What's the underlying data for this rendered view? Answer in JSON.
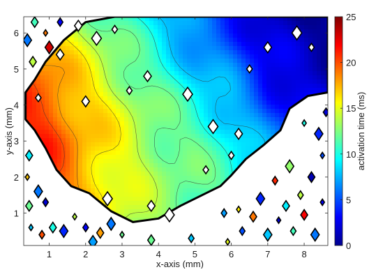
{
  "chart_data": {
    "type": "heatmap",
    "title": "",
    "xlabel": "x-axis (mm)",
    "ylabel": "y-axis (mm)",
    "colorbar_label": "activation time (ms)",
    "xlim": [
      0.3,
      8.65
    ],
    "ylim": [
      0.1,
      6.45
    ],
    "clim": [
      0,
      25
    ],
    "x_ticks": [
      1,
      2,
      3,
      4,
      5,
      6,
      7,
      8
    ],
    "y_ticks": [
      1,
      2,
      3,
      4,
      5,
      6
    ],
    "colorbar_ticks": [
      0,
      5,
      10,
      15,
      20,
      25
    ],
    "colormap": "jet",
    "colormap_stops": [
      "#00008f",
      "#0000ff",
      "#0080ff",
      "#00ffff",
      "#80ff80",
      "#ffff00",
      "#ff8000",
      "#ff0000",
      "#800000"
    ],
    "contour_levels": [
      8,
      10,
      12,
      14,
      16,
      18,
      20
    ],
    "grid": false,
    "description_of_field": "activation time increases from upper-right (~0 ms) to left (~20 ms)",
    "region_polygon": [
      [
        0.35,
        4.35
      ],
      [
        0.6,
        4.7
      ],
      [
        0.9,
        5.2
      ],
      [
        1.4,
        5.8
      ],
      [
        2.0,
        6.3
      ],
      [
        2.8,
        6.45
      ],
      [
        6.5,
        6.45
      ],
      [
        8.65,
        6.45
      ],
      [
        8.65,
        4.35
      ],
      [
        8.1,
        4.25
      ],
      [
        7.6,
        3.9
      ],
      [
        7.35,
        3.3
      ],
      [
        6.9,
        2.9
      ],
      [
        6.4,
        2.5
      ],
      [
        6.0,
        2.05
      ],
      [
        5.7,
        1.75
      ],
      [
        5.2,
        1.5
      ],
      [
        4.6,
        1.2
      ],
      [
        4.0,
        0.85
      ],
      [
        3.3,
        0.75
      ],
      [
        2.7,
        1.05
      ],
      [
        2.1,
        1.55
      ],
      [
        1.6,
        1.75
      ],
      [
        1.2,
        2.2
      ],
      [
        0.9,
        2.8
      ],
      [
        0.6,
        3.3
      ],
      [
        0.35,
        3.6
      ]
    ],
    "values_grid": {
      "x": [
        0.3,
        1.0,
        2.0,
        3.0,
        4.0,
        5.0,
        6.0,
        7.0,
        8.0,
        8.65
      ],
      "y": [
        0.1,
        1.0,
        2.0,
        3.0,
        4.0,
        5.0,
        6.0,
        6.45
      ],
      "z": [
        [
          19,
          18,
          16.5,
          14.5,
          12.5,
          11.5,
          10.5,
          9,
          7,
          6
        ],
        [
          20,
          19,
          17,
          15,
          13,
          12,
          11,
          9,
          7,
          6
        ],
        [
          20.5,
          20,
          17.5,
          15,
          13,
          12,
          10.5,
          8,
          6,
          5
        ],
        [
          21,
          20.5,
          17.5,
          15,
          13,
          11.5,
          9.5,
          6.5,
          4.5,
          4
        ],
        [
          20.5,
          20,
          17,
          14.5,
          12,
          10,
          8,
          4.5,
          3,
          2.5
        ],
        [
          19.5,
          18.5,
          15.5,
          13,
          10.5,
          8,
          6,
          3,
          1.5,
          1
        ],
        [
          18.5,
          16.5,
          14,
          11.5,
          9,
          6.5,
          4.5,
          2,
          0.8,
          0.5
        ],
        [
          18,
          15.5,
          13,
          10.5,
          8.5,
          6,
          4,
          1.5,
          0.5,
          0.3
        ]
      ]
    },
    "scatter_blobs": {
      "description": "small diamond-shaped activation patches outside and along the border of the main region",
      "points": [
        [
          0.5,
          0.6,
          8
        ],
        [
          0.8,
          0.4,
          20
        ],
        [
          1.1,
          0.6,
          10
        ],
        [
          1.4,
          0.5,
          4
        ],
        [
          1.7,
          0.9,
          14
        ],
        [
          2.0,
          0.6,
          3
        ],
        [
          2.4,
          0.45,
          18
        ],
        [
          2.7,
          0.7,
          6
        ],
        [
          3.0,
          0.4,
          12
        ],
        [
          6.3,
          0.5,
          5
        ],
        [
          6.6,
          0.9,
          19
        ],
        [
          7.0,
          0.4,
          8
        ],
        [
          7.3,
          0.8,
          2
        ],
        [
          7.7,
          0.5,
          11
        ],
        [
          8.0,
          0.95,
          22
        ],
        [
          8.3,
          0.4,
          6
        ],
        [
          8.5,
          1.3,
          3
        ],
        [
          7.9,
          1.5,
          14
        ],
        [
          7.5,
          1.2,
          9
        ],
        [
          6.8,
          1.4,
          4
        ],
        [
          6.2,
          1.1,
          16
        ],
        [
          5.8,
          1.0,
          7
        ],
        [
          8.2,
          2.0,
          1
        ],
        [
          7.6,
          2.3,
          13
        ],
        [
          8.5,
          2.6,
          5
        ],
        [
          7.2,
          1.9,
          21
        ],
        [
          0.45,
          1.2,
          12
        ],
        [
          0.7,
          1.6,
          6
        ],
        [
          0.4,
          2.0,
          17
        ],
        [
          0.9,
          1.3,
          2
        ],
        [
          0.45,
          2.6,
          9
        ],
        [
          8.4,
          3.2,
          4
        ],
        [
          8.0,
          3.5,
          10
        ],
        [
          8.6,
          3.8,
          2
        ],
        [
          0.55,
          5.2,
          14
        ],
        [
          0.4,
          5.8,
          6
        ],
        [
          0.9,
          6.0,
          19
        ],
        [
          1.3,
          6.3,
          3
        ],
        [
          0.6,
          6.3,
          11
        ],
        [
          1.0,
          5.6,
          23
        ],
        [
          5.9,
          0.2,
          15
        ],
        [
          4.9,
          0.3,
          8
        ],
        [
          3.8,
          0.25,
          12
        ],
        [
          2.2,
          0.2,
          7
        ]
      ]
    },
    "holes": {
      "description": "small white voids inside the region",
      "points": [
        [
          0.7,
          4.2
        ],
        [
          1.3,
          5.4
        ],
        [
          2.3,
          5.85
        ],
        [
          2.8,
          6.1
        ],
        [
          3.7,
          4.8
        ],
        [
          4.8,
          4.3
        ],
        [
          6.5,
          5.0
        ],
        [
          7.0,
          5.6
        ],
        [
          7.8,
          6.0
        ],
        [
          8.2,
          5.6
        ],
        [
          3.8,
          1.2
        ],
        [
          2.6,
          1.4
        ],
        [
          5.3,
          2.2
        ],
        [
          6.2,
          3.2
        ],
        [
          5.5,
          3.4
        ],
        [
          3.2,
          4.4
        ],
        [
          1.8,
          6.2
        ],
        [
          4.3,
          0.95
        ],
        [
          6.0,
          2.6
        ],
        [
          2.0,
          4.1
        ]
      ]
    }
  }
}
